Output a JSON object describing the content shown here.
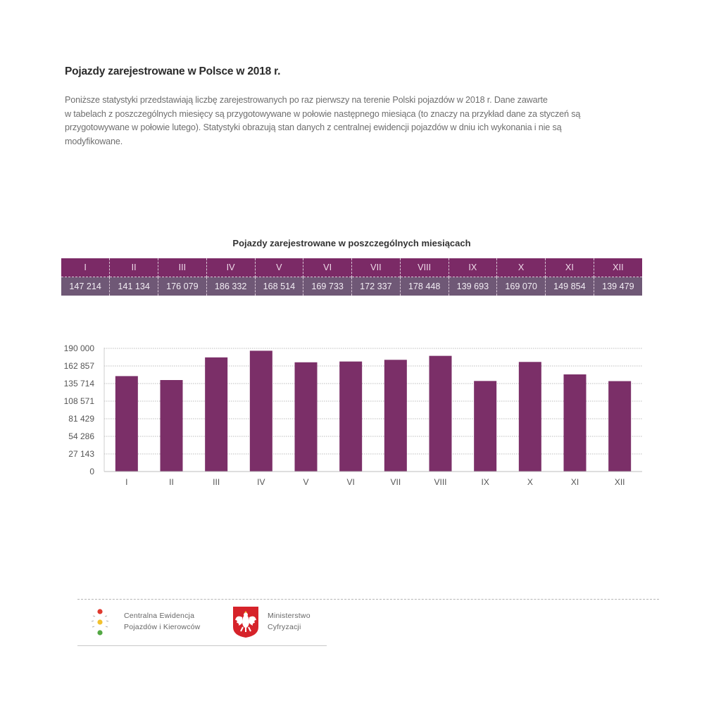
{
  "page": {
    "title": "Pojazdy zarejestrowane w Polsce w 2018 r.",
    "intro_lines": [
      "Poniższe statystyki przedstawiają liczbę zarejestrowanych po raz pierwszy na terenie Polski pojazdów w 2018 r. Dane zawarte",
      "w tabelach z poszczególnych miesięcy są przygotowywane w połowie następnego miesiąca (to znaczy na przykład dane za styczeń są",
      "przygotowywane w połowie lutego). Statystyki obrazują stan danych z centralnej ewidencji pojazdów w dniu ich wykonania i nie są",
      "modyfikowane."
    ]
  },
  "table": {
    "title": "Pojazdy zarejestrowane w poszczególnych miesiącach",
    "months": [
      "I",
      "II",
      "III",
      "IV",
      "V",
      "VI",
      "VII",
      "VIII",
      "IX",
      "X",
      "XI",
      "XII"
    ],
    "values": [
      "147 214",
      "141 134",
      "176 079",
      "186 332",
      "168 514",
      "169 733",
      "172 337",
      "178 448",
      "139 693",
      "169 070",
      "149 854",
      "139 479"
    ]
  },
  "chart_data": {
    "type": "bar",
    "title": "",
    "xlabel": "",
    "ylabel": "",
    "categories": [
      "I",
      "II",
      "III",
      "IV",
      "V",
      "VI",
      "VII",
      "VIII",
      "IX",
      "X",
      "XI",
      "XII"
    ],
    "values": [
      147214,
      141134,
      176079,
      186332,
      168514,
      169733,
      172337,
      178448,
      139693,
      169070,
      149854,
      139479
    ],
    "ylim": [
      0,
      190000
    ],
    "yticks": [
      0,
      27143,
      54286,
      81429,
      108571,
      135714,
      162857,
      190000
    ],
    "ytick_labels": [
      "0",
      "27 143",
      "54 286",
      "81 429",
      "108 571",
      "135 714",
      "162 857",
      "190 000"
    ],
    "grid": true,
    "legend": "none",
    "bar_color": "#7b2f68"
  },
  "footer": {
    "cepik_lines": [
      "Centralna Ewidencja",
      "Pojazdów i Kierowców"
    ],
    "ministry_lines": [
      "Ministerstwo",
      "Cyfryzacji"
    ]
  },
  "colors": {
    "header_row": "#7b2a66",
    "value_row": "#6f5876",
    "bar": "#7b2f68"
  }
}
